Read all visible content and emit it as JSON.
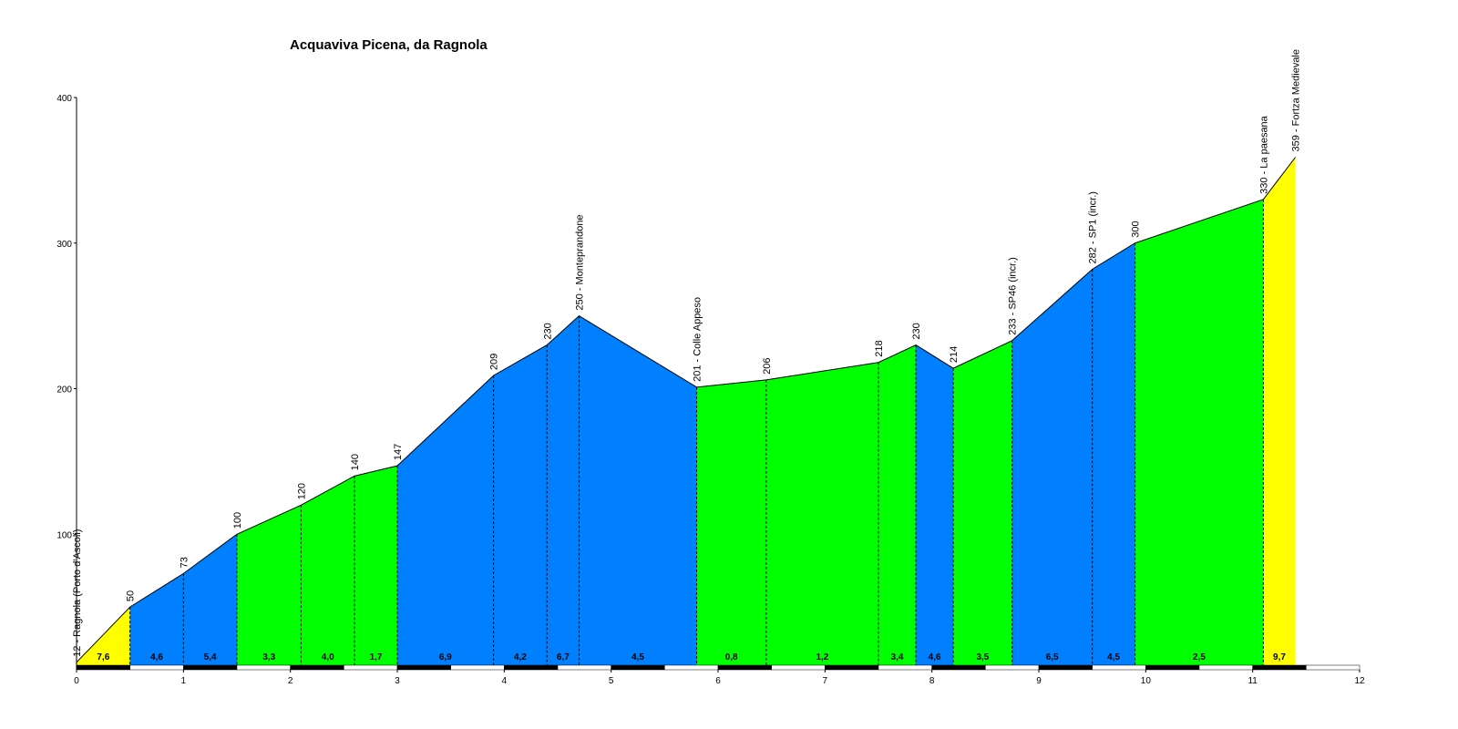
{
  "chart_data": {
    "type": "area",
    "title": "Acquaviva Picena, da Ragnola",
    "xlabel": "",
    "ylabel": "",
    "xlim": [
      0,
      12
    ],
    "ylim": [
      0,
      400
    ],
    "x_ticks": [
      0,
      1,
      2,
      3,
      4,
      5,
      6,
      7,
      8,
      9,
      10,
      11,
      12
    ],
    "y_ticks": [
      100,
      200,
      300,
      400
    ],
    "grid": false,
    "points": [
      {
        "x": 0.0,
        "y": 12,
        "label": "12 - Ragnola (Porto d'Ascoli)"
      },
      {
        "x": 0.5,
        "y": 50,
        "label": "50"
      },
      {
        "x": 1.0,
        "y": 73,
        "label": "73"
      },
      {
        "x": 1.5,
        "y": 100,
        "label": "100"
      },
      {
        "x": 2.1,
        "y": 120,
        "label": "120"
      },
      {
        "x": 2.6,
        "y": 140,
        "label": "140"
      },
      {
        "x": 3.0,
        "y": 147,
        "label": "147"
      },
      {
        "x": 3.9,
        "y": 209,
        "label": "209"
      },
      {
        "x": 4.4,
        "y": 230,
        "label": "230"
      },
      {
        "x": 4.7,
        "y": 250,
        "label": "250 - Monteprandone"
      },
      {
        "x": 5.8,
        "y": 201,
        "label": "201 - Colle Appeso"
      },
      {
        "x": 6.45,
        "y": 206,
        "label": "206"
      },
      {
        "x": 7.5,
        "y": 218,
        "label": "218"
      },
      {
        "x": 7.85,
        "y": 230,
        "label": "230"
      },
      {
        "x": 8.2,
        "y": 214,
        "label": "214"
      },
      {
        "x": 8.75,
        "y": 233,
        "label": "233 - SP46 (incr.)"
      },
      {
        "x": 9.5,
        "y": 282,
        "label": "282 - SP1 (incr.)"
      },
      {
        "x": 9.9,
        "y": 300,
        "label": "300"
      },
      {
        "x": 11.1,
        "y": 330,
        "label": "330 - La paesana"
      },
      {
        "x": 11.4,
        "y": 359,
        "label": "359 - Fortza Medievale"
      }
    ],
    "segments": [
      {
        "grade": "7,6",
        "color": "#ffff00"
      },
      {
        "grade": "4,6",
        "color": "#0080ff"
      },
      {
        "grade": "5,4",
        "color": "#0080ff"
      },
      {
        "grade": "3,3",
        "color": "#00ff00"
      },
      {
        "grade": "4,0",
        "color": "#00ff00"
      },
      {
        "grade": "1,7",
        "color": "#00ff00"
      },
      {
        "grade": "6,9",
        "color": "#0080ff"
      },
      {
        "grade": "4,2",
        "color": "#0080ff"
      },
      {
        "grade": "6,7",
        "color": "#0080ff"
      },
      {
        "grade": "4,5",
        "color": "#0080ff"
      },
      {
        "grade": "0,8",
        "color": "#00ff00"
      },
      {
        "grade": "1,2",
        "color": "#00ff00"
      },
      {
        "grade": "3,4",
        "color": "#00ff00"
      },
      {
        "grade": "4,6",
        "color": "#0080ff"
      },
      {
        "grade": "3,5",
        "color": "#00ff00"
      },
      {
        "grade": "6,5",
        "color": "#0080ff"
      },
      {
        "grade": "4,5",
        "color": "#0080ff"
      },
      {
        "grade": "2,5",
        "color": "#00ff00"
      },
      {
        "grade": "9,7",
        "color": "#ffff00"
      }
    ],
    "km_bar_colors": [
      "#000000",
      "#ffffff"
    ]
  }
}
